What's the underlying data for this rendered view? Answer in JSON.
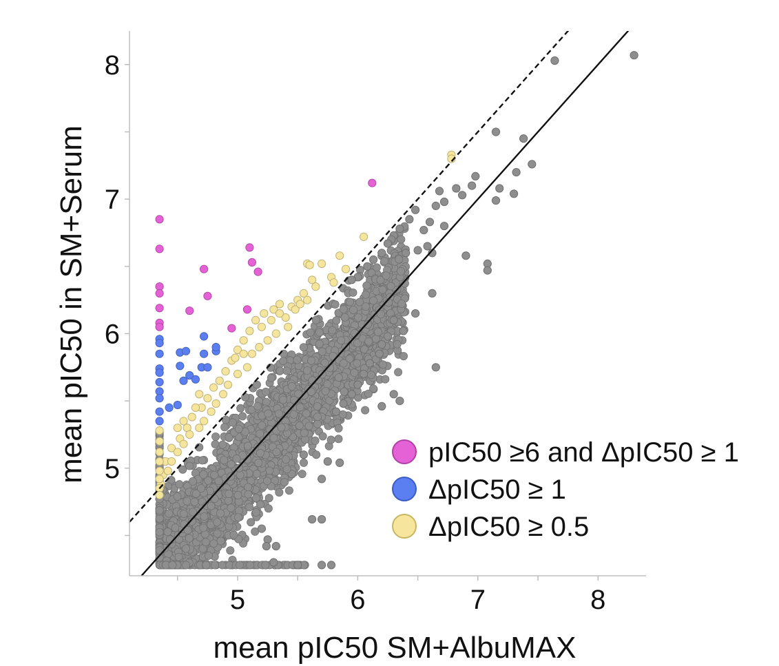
{
  "chart_data": {
    "type": "scatter",
    "xlabel": "mean pIC50 SM+AlbuMAX",
    "ylabel": "mean pIC50 in SM+Serum",
    "xlim": [
      4.1,
      8.4
    ],
    "ylim": [
      4.2,
      8.25
    ],
    "x_ticks": [
      5,
      6,
      7,
      8
    ],
    "x_minor_ticks": [
      4.5,
      5.5,
      6.5,
      7.5
    ],
    "y_ticks": [
      5,
      6,
      7,
      8
    ],
    "y_minor_ticks": [
      4.5,
      5.5,
      6.5,
      7.5
    ],
    "lines": [
      {
        "name": "identity",
        "style": "solid",
        "slope": 1,
        "intercept": 0
      },
      {
        "name": "offset",
        "style": "dashed",
        "slope": 1,
        "intercept": 0.5
      }
    ],
    "legend": {
      "placement": "bottom-right",
      "entries": [
        {
          "label": "pIC50 ≥6 and ΔpIC50 ≥ 1",
          "color": "#e562d6",
          "edge": "#b040a8"
        },
        {
          "label": "ΔpIC50 ≥ 1",
          "color": "#5b7ff0",
          "edge": "#3a5bc4"
        },
        {
          "label": "ΔpIC50 ≥ 0.5",
          "color": "#f6e59c",
          "edge": "#c9b560"
        }
      ]
    },
    "series": [
      {
        "name": "pIC50 ≥6 and ΔpIC50 ≥ 1",
        "color": "#e562d6",
        "points": [
          [
            4.35,
            6.85
          ],
          [
            4.35,
            6.63
          ],
          [
            4.35,
            6.35
          ],
          [
            4.35,
            6.3
          ],
          [
            4.35,
            6.19
          ],
          [
            4.35,
            6.08
          ],
          [
            4.35,
            6.05
          ],
          [
            4.6,
            6.17
          ],
          [
            4.72,
            6.48
          ],
          [
            4.75,
            6.28
          ],
          [
            4.95,
            6.04
          ],
          [
            5.08,
            6.18
          ],
          [
            5.1,
            6.64
          ],
          [
            5.12,
            6.53
          ],
          [
            5.17,
            6.46
          ],
          [
            6.12,
            7.12
          ]
        ]
      },
      {
        "name": "ΔpIC50 ≥ 1",
        "color": "#5b7ff0",
        "points": [
          [
            4.35,
            5.96
          ],
          [
            4.35,
            5.93
          ],
          [
            4.35,
            5.85
          ],
          [
            4.35,
            5.74
          ],
          [
            4.35,
            5.71
          ],
          [
            4.35,
            5.64
          ],
          [
            4.35,
            5.57
          ],
          [
            4.35,
            5.52
          ],
          [
            4.35,
            5.42
          ],
          [
            4.35,
            5.35
          ],
          [
            4.43,
            5.45
          ],
          [
            4.5,
            5.47
          ],
          [
            4.52,
            5.86
          ],
          [
            4.57,
            5.87
          ],
          [
            4.52,
            5.76
          ],
          [
            4.55,
            5.65
          ],
          [
            4.6,
            5.69
          ],
          [
            4.65,
            5.66
          ],
          [
            4.7,
            5.75
          ],
          [
            4.75,
            5.75
          ],
          [
            4.72,
            5.85
          ],
          [
            4.72,
            5.98
          ],
          [
            4.82,
            5.87
          ],
          [
            4.82,
            5.9
          ]
        ]
      },
      {
        "name": "ΔpIC50 ≥ 0.5",
        "color": "#f6e59c",
        "points": [
          [
            6.78,
            7.33
          ],
          [
            6.78,
            7.3
          ],
          [
            6.05,
            6.72
          ],
          [
            5.85,
            6.58
          ],
          [
            5.7,
            6.52
          ],
          [
            5.58,
            6.52
          ],
          [
            5.6,
            6.51
          ],
          [
            5.9,
            6.48
          ],
          [
            5.78,
            6.42
          ],
          [
            5.8,
            6.38
          ],
          [
            5.65,
            6.35
          ],
          [
            5.62,
            6.4
          ],
          [
            5.55,
            6.3
          ],
          [
            5.5,
            6.25
          ],
          [
            5.45,
            6.2
          ],
          [
            5.35,
            6.22
          ],
          [
            5.3,
            6.18
          ],
          [
            5.22,
            6.15
          ],
          [
            5.15,
            6.1
          ],
          [
            5.1,
            6.02
          ],
          [
            5.05,
            5.95
          ],
          [
            5.0,
            5.88
          ],
          [
            4.95,
            5.8
          ],
          [
            4.9,
            5.72
          ],
          [
            4.85,
            5.65
          ],
          [
            4.8,
            5.6
          ],
          [
            4.75,
            5.52
          ],
          [
            4.7,
            5.45
          ],
          [
            4.62,
            5.38
          ],
          [
            4.58,
            5.3
          ],
          [
            4.52,
            5.22
          ],
          [
            4.45,
            5.15
          ],
          [
            4.4,
            5.05
          ],
          [
            4.38,
            4.95
          ],
          [
            4.36,
            4.88
          ],
          [
            4.35,
            5.28
          ],
          [
            4.35,
            5.2
          ],
          [
            4.35,
            5.12
          ],
          [
            4.35,
            5.05
          ],
          [
            4.35,
            4.98
          ],
          [
            4.35,
            4.92
          ],
          [
            4.35,
            4.85
          ],
          [
            4.35,
            4.8
          ],
          [
            5.4,
            6.12
          ],
          [
            5.48,
            6.18
          ],
          [
            5.52,
            6.22
          ],
          [
            5.58,
            6.25
          ],
          [
            5.42,
            6.05
          ],
          [
            5.32,
            6.0
          ],
          [
            5.25,
            5.95
          ],
          [
            5.18,
            5.9
          ],
          [
            5.12,
            5.85
          ],
          [
            5.08,
            5.75
          ],
          [
            5.0,
            5.7
          ],
          [
            4.92,
            5.62
          ],
          [
            4.88,
            5.55
          ],
          [
            4.82,
            5.48
          ],
          [
            4.78,
            5.42
          ],
          [
            4.72,
            5.35
          ],
          [
            4.68,
            5.3
          ],
          [
            4.6,
            5.25
          ],
          [
            4.55,
            5.18
          ],
          [
            4.5,
            5.12
          ],
          [
            4.45,
            5.05
          ],
          [
            4.42,
            4.98
          ],
          [
            4.5,
            5.3
          ],
          [
            4.55,
            5.35
          ],
          [
            4.65,
            5.45
          ],
          [
            4.68,
            5.55
          ],
          [
            4.98,
            5.82
          ],
          [
            5.05,
            5.85
          ],
          [
            5.2,
            6.05
          ],
          [
            5.28,
            6.1
          ],
          [
            5.35,
            6.15
          ]
        ]
      },
      {
        "name": "other",
        "color": "#8e8e8e",
        "points": [
          [
            8.3,
            8.07
          ],
          [
            7.64,
            8.03
          ],
          [
            7.15,
            7.5
          ],
          [
            7.38,
            7.45
          ],
          [
            7.45,
            7.26
          ],
          [
            7.32,
            7.2
          ],
          [
            6.98,
            7.17
          ],
          [
            6.95,
            7.1
          ],
          [
            6.82,
            7.08
          ],
          [
            6.87,
            7.03
          ],
          [
            7.18,
            7.08
          ],
          [
            7.15,
            6.99
          ],
          [
            7.3,
            7.04
          ],
          [
            6.68,
            7.06
          ],
          [
            6.72,
            6.98
          ],
          [
            6.65,
            6.95
          ],
          [
            6.48,
            6.92
          ],
          [
            6.43,
            6.85
          ],
          [
            6.35,
            6.78
          ],
          [
            6.3,
            6.73
          ],
          [
            6.28,
            6.7
          ],
          [
            6.25,
            6.67
          ],
          [
            6.2,
            6.6
          ],
          [
            6.13,
            6.55
          ],
          [
            6.08,
            6.5
          ],
          [
            6.0,
            6.42
          ],
          [
            5.95,
            6.4
          ],
          [
            6.72,
            6.8
          ],
          [
            6.55,
            6.77
          ],
          [
            6.6,
            6.83
          ],
          [
            6.4,
            6.6
          ],
          [
            6.5,
            6.62
          ],
          [
            6.58,
            6.65
          ],
          [
            6.62,
            6.6
          ],
          [
            6.9,
            6.58
          ],
          [
            7.08,
            6.52
          ],
          [
            7.08,
            6.47
          ],
          [
            6.62,
            6.3
          ],
          [
            6.48,
            6.15
          ],
          [
            6.38,
            6.02
          ],
          [
            6.3,
            6.1
          ],
          [
            6.25,
            5.98
          ],
          [
            6.2,
            5.92
          ],
          [
            6.18,
            5.85
          ],
          [
            6.1,
            5.78
          ],
          [
            6.05,
            5.7
          ],
          [
            6.0,
            5.62
          ],
          [
            5.95,
            5.55
          ],
          [
            5.88,
            5.48
          ],
          [
            5.82,
            5.42
          ],
          [
            6.65,
            5.75
          ],
          [
            6.3,
            5.55
          ],
          [
            6.35,
            5.5
          ],
          [
            6.2,
            5.46
          ],
          [
            5.75,
            5.05
          ],
          [
            5.85,
            5.04
          ],
          [
            5.55,
            5.1
          ],
          [
            5.7,
            4.92
          ],
          [
            5.62,
            4.62
          ],
          [
            5.7,
            4.62
          ],
          [
            5.2,
            4.55
          ],
          [
            5.25,
            4.47
          ],
          [
            5.32,
            4.42
          ],
          [
            5.24,
            4.42
          ],
          [
            5.3,
            4.3
          ],
          [
            5.5,
            4.28
          ],
          [
            5.7,
            4.28
          ],
          [
            5.78,
            4.28
          ]
        ]
      }
    ]
  },
  "dense_cloud": {
    "color": "#8e8e8e",
    "count": 2600,
    "x_range": [
      4.35,
      6.4
    ],
    "center_offset": 0.05,
    "spread": 0.22,
    "upper_offset": 0.48,
    "floor": 4.28
  }
}
